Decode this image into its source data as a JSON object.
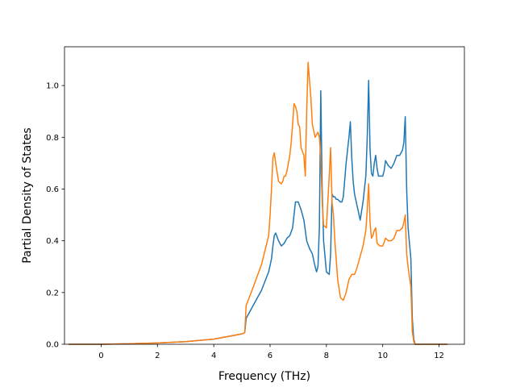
{
  "chart_data": {
    "type": "line",
    "title": "",
    "xlabel": "Frequency (THz)",
    "ylabel": "Partial Density of States",
    "xlim": [
      -1.3,
      12.9
    ],
    "ylim": [
      0.0,
      1.15
    ],
    "xticks": [
      0,
      2,
      4,
      6,
      8,
      10,
      12
    ],
    "yticks": [
      0.0,
      0.2,
      0.4,
      0.6,
      0.8,
      1.0
    ],
    "xtick_labels": [
      "0",
      "2",
      "4",
      "6",
      "8",
      "10",
      "12"
    ],
    "ytick_labels": [
      "0.0",
      "0.2",
      "0.4",
      "0.6",
      "0.8",
      "1.0"
    ],
    "grid": false,
    "legend": "none",
    "series": [
      {
        "color": "#1f77b4",
        "x": [
          -1.15,
          0,
          1,
          2,
          3,
          4,
          4.5,
          5.0,
          5.1,
          5.15,
          5.4,
          5.7,
          5.95,
          6.05,
          6.1,
          6.15,
          6.2,
          6.3,
          6.4,
          6.5,
          6.6,
          6.7,
          6.8,
          6.85,
          6.9,
          6.95,
          7.0,
          7.1,
          7.2,
          7.3,
          7.4,
          7.5,
          7.6,
          7.65,
          7.7,
          7.75,
          7.8,
          7.85,
          7.9,
          8.0,
          8.1,
          8.15,
          8.2,
          8.25,
          8.3,
          8.35,
          8.4,
          8.5,
          8.55,
          8.6,
          8.7,
          8.8,
          8.85,
          8.9,
          8.95,
          9.0,
          9.1,
          9.2,
          9.3,
          9.4,
          9.45,
          9.5,
          9.55,
          9.6,
          9.65,
          9.7,
          9.75,
          9.8,
          9.85,
          9.9,
          10.0,
          10.05,
          10.1,
          10.2,
          10.3,
          10.4,
          10.5,
          10.6,
          10.7,
          10.75,
          10.8,
          10.85,
          10.9,
          11.0,
          11.05,
          11.1,
          11.15,
          11.2,
          12.3
        ],
        "values": [
          0.0,
          0.0,
          0.002,
          0.005,
          0.01,
          0.02,
          0.03,
          0.04,
          0.045,
          0.1,
          0.15,
          0.21,
          0.28,
          0.33,
          0.38,
          0.42,
          0.43,
          0.4,
          0.38,
          0.39,
          0.41,
          0.42,
          0.45,
          0.5,
          0.55,
          0.55,
          0.55,
          0.52,
          0.48,
          0.4,
          0.37,
          0.35,
          0.3,
          0.28,
          0.3,
          0.45,
          0.98,
          0.6,
          0.4,
          0.28,
          0.27,
          0.35,
          0.58,
          0.57,
          0.57,
          0.56,
          0.56,
          0.55,
          0.55,
          0.57,
          0.7,
          0.8,
          0.86,
          0.72,
          0.63,
          0.58,
          0.53,
          0.48,
          0.55,
          0.65,
          0.8,
          1.02,
          0.75,
          0.66,
          0.65,
          0.7,
          0.73,
          0.68,
          0.65,
          0.65,
          0.65,
          0.67,
          0.71,
          0.69,
          0.68,
          0.7,
          0.73,
          0.73,
          0.75,
          0.78,
          0.88,
          0.6,
          0.45,
          0.33,
          0.1,
          0.02,
          0.0,
          0.0,
          0.0
        ]
      },
      {
        "color": "#ff7f0e",
        "x": [
          -1.15,
          0,
          1,
          2,
          3,
          4,
          4.5,
          5.0,
          5.1,
          5.15,
          5.4,
          5.7,
          5.95,
          6.0,
          6.05,
          6.1,
          6.15,
          6.2,
          6.3,
          6.4,
          6.45,
          6.5,
          6.55,
          6.6,
          6.7,
          6.75,
          6.8,
          6.85,
          6.9,
          6.95,
          7.0,
          7.05,
          7.1,
          7.2,
          7.25,
          7.3,
          7.35,
          7.4,
          7.45,
          7.5,
          7.6,
          7.7,
          7.75,
          7.8,
          7.85,
          7.9,
          8.0,
          8.1,
          8.15,
          8.2,
          8.25,
          8.3,
          8.4,
          8.5,
          8.6,
          8.7,
          8.8,
          8.9,
          9.0,
          9.1,
          9.2,
          9.3,
          9.4,
          9.45,
          9.5,
          9.55,
          9.6,
          9.65,
          9.7,
          9.75,
          9.8,
          9.9,
          10.0,
          10.1,
          10.2,
          10.3,
          10.4,
          10.5,
          10.6,
          10.7,
          10.75,
          10.8,
          10.85,
          10.9,
          11.0,
          11.05,
          11.1,
          11.15,
          11.2,
          12.3
        ],
        "values": [
          0.0,
          0.0,
          0.002,
          0.005,
          0.01,
          0.02,
          0.03,
          0.04,
          0.045,
          0.15,
          0.22,
          0.31,
          0.42,
          0.5,
          0.6,
          0.72,
          0.74,
          0.7,
          0.63,
          0.62,
          0.63,
          0.65,
          0.65,
          0.67,
          0.73,
          0.78,
          0.85,
          0.93,
          0.92,
          0.9,
          0.85,
          0.84,
          0.76,
          0.73,
          0.65,
          0.9,
          1.09,
          1.02,
          0.95,
          0.85,
          0.8,
          0.82,
          0.8,
          0.72,
          0.55,
          0.46,
          0.45,
          0.65,
          0.76,
          0.55,
          0.5,
          0.4,
          0.25,
          0.18,
          0.17,
          0.2,
          0.25,
          0.27,
          0.27,
          0.3,
          0.34,
          0.38,
          0.44,
          0.52,
          0.62,
          0.47,
          0.41,
          0.42,
          0.44,
          0.45,
          0.39,
          0.38,
          0.38,
          0.41,
          0.4,
          0.4,
          0.41,
          0.44,
          0.44,
          0.45,
          0.47,
          0.5,
          0.35,
          0.3,
          0.22,
          0.05,
          0.01,
          0.0,
          0.0,
          0.0
        ]
      }
    ]
  }
}
